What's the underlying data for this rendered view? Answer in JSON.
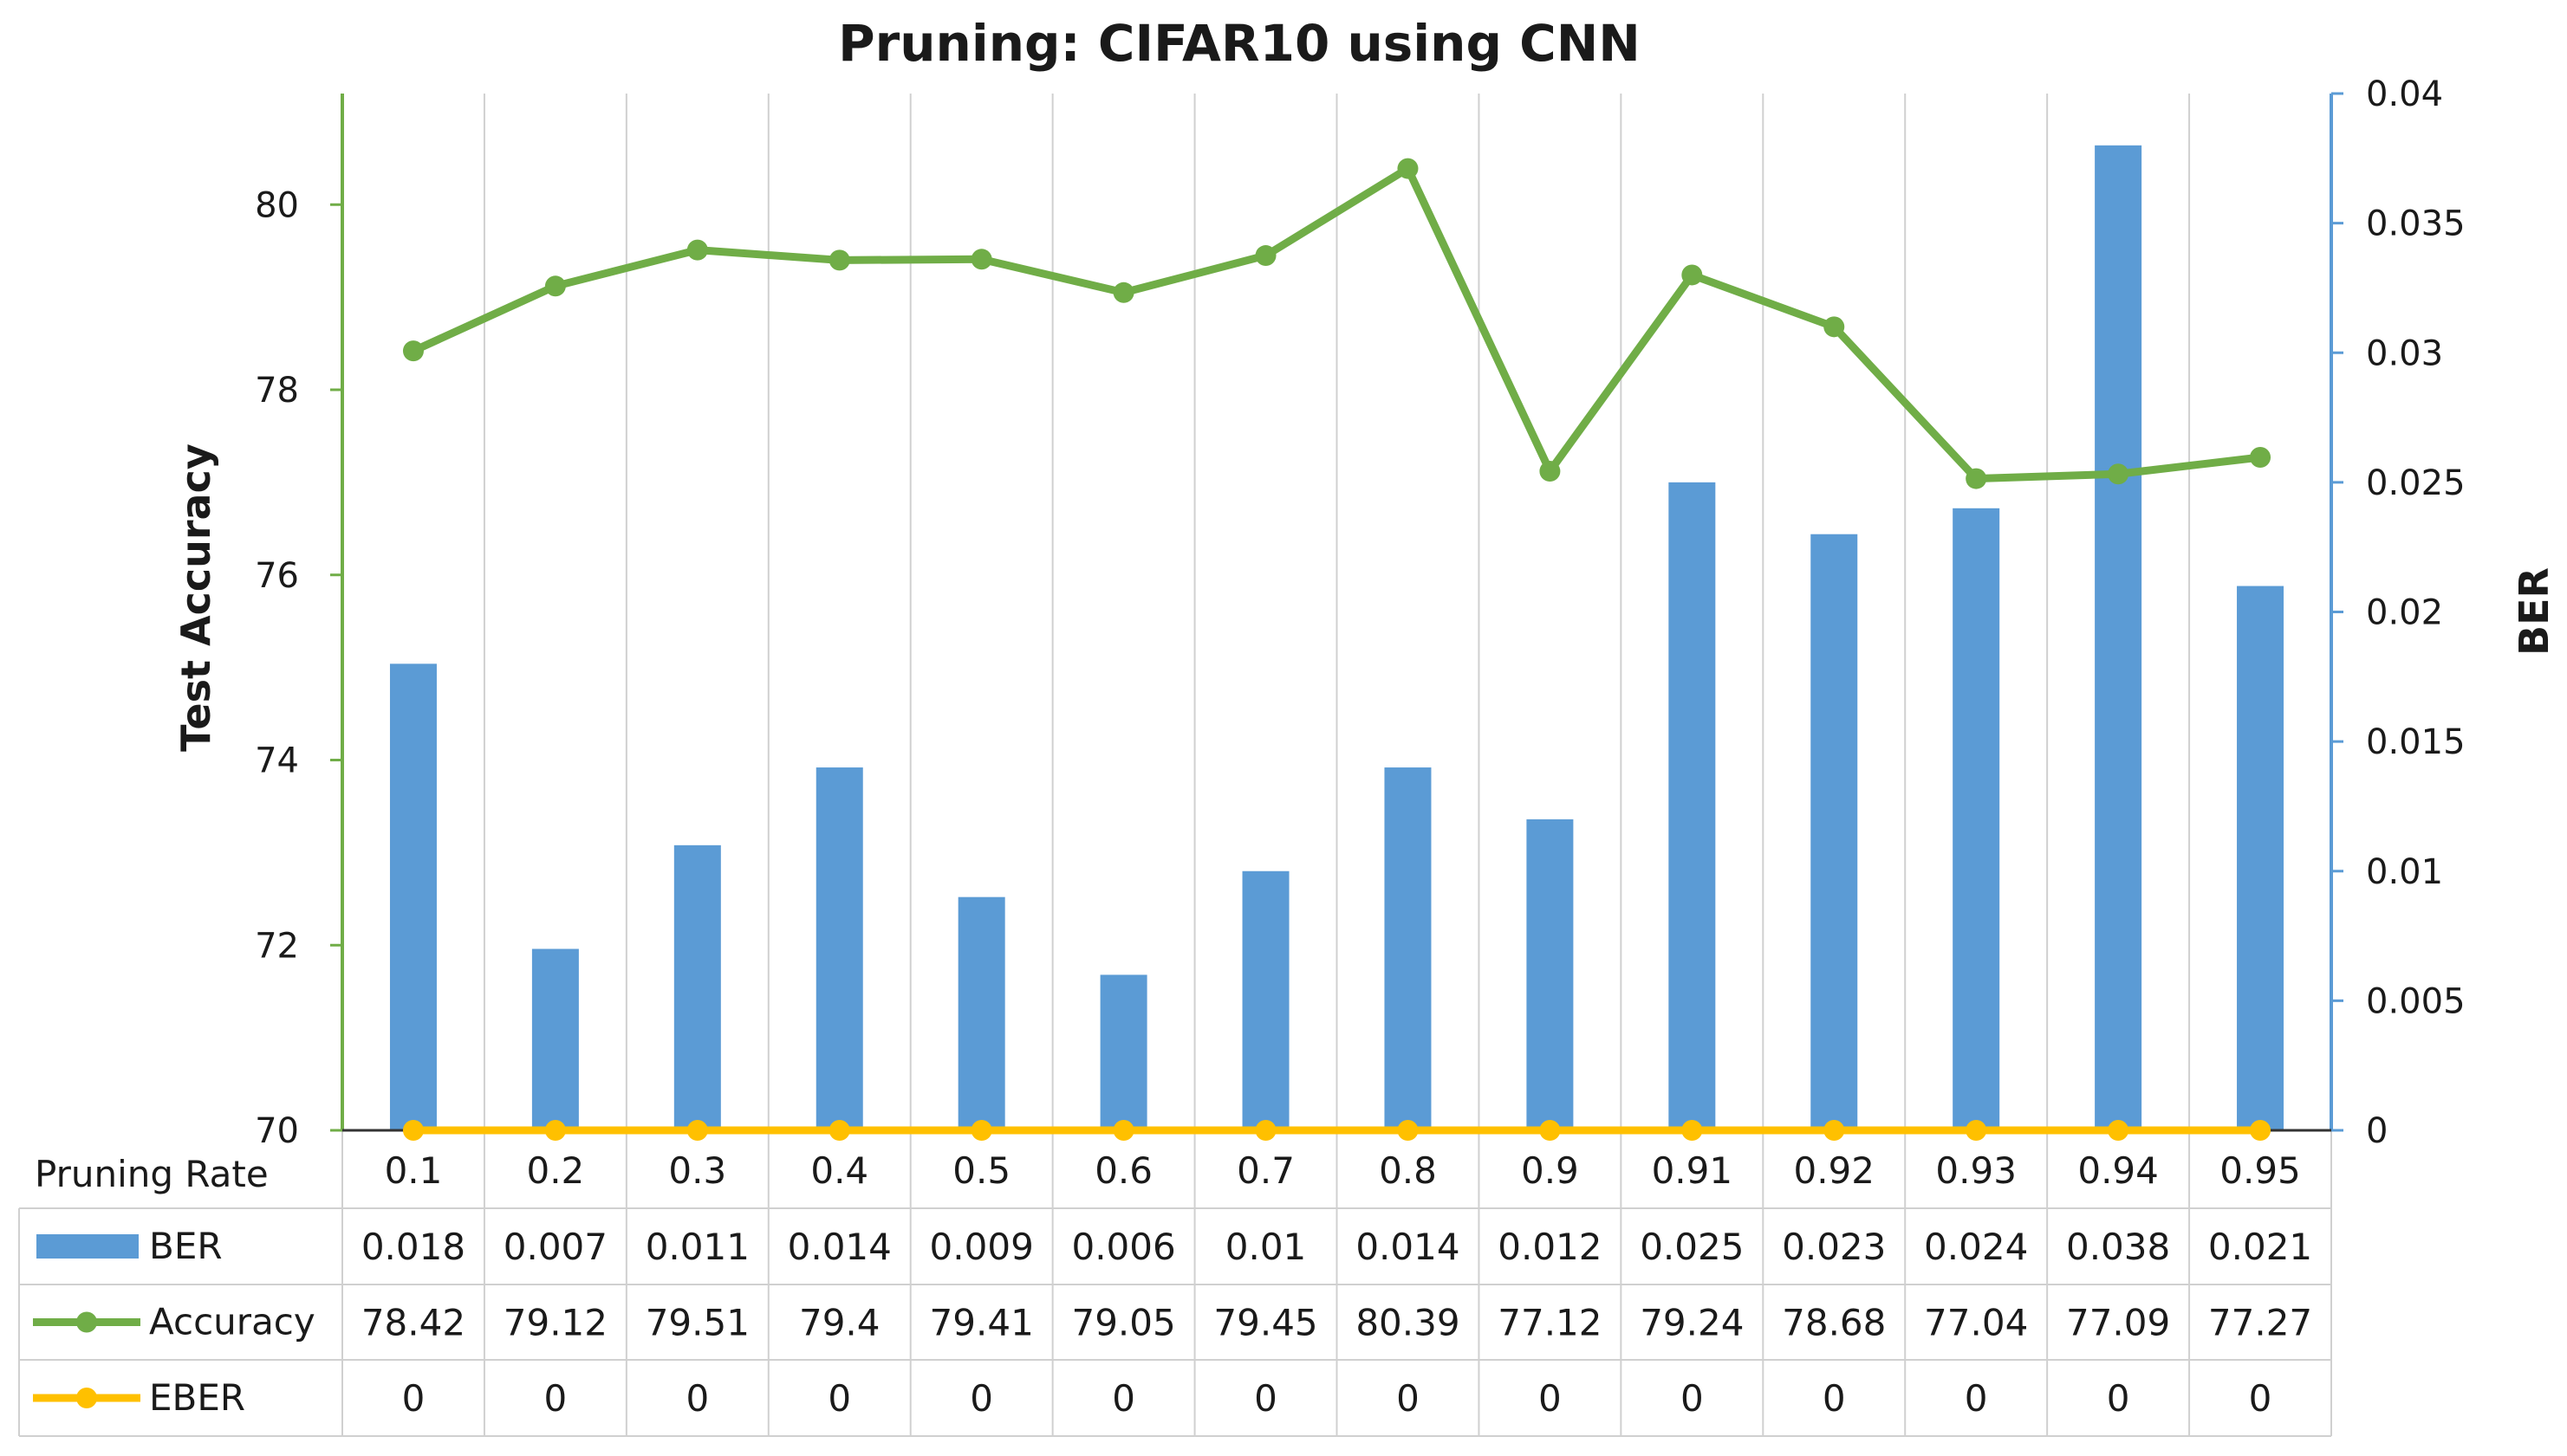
{
  "chart_data": {
    "type": "bar",
    "title": "Pruning: CIFAR10 using CNN",
    "category_axis_label": "Pruning Rate",
    "categories": [
      "0.1",
      "0.2",
      "0.3",
      "0.4",
      "0.5",
      "0.6",
      "0.7",
      "0.8",
      "0.9",
      "0.91",
      "0.92",
      "0.93",
      "0.94",
      "0.95"
    ],
    "left_axis": {
      "label": "Test Accuracy",
      "min": 70,
      "max": 81.2,
      "ticks": [
        "70",
        "72",
        "74",
        "76",
        "78",
        "80"
      ]
    },
    "right_axis": {
      "label": "BER",
      "min": 0,
      "max": 0.04,
      "ticks": [
        "0",
        "0.005",
        "0.01",
        "0.015",
        "0.02",
        "0.025",
        "0.03",
        "0.035",
        "0.04"
      ]
    },
    "grid": "vertical",
    "series": [
      {
        "name": "BER",
        "kind": "bar",
        "axis": "right",
        "color": "#5b9bd5",
        "values": [
          0.018,
          0.007,
          0.011,
          0.014,
          0.009,
          0.006,
          0.01,
          0.014,
          0.012,
          0.025,
          0.023,
          0.024,
          0.038,
          0.021
        ],
        "labels": [
          "0.018",
          "0.007",
          "0.011",
          "0.014",
          "0.009",
          "0.006",
          "0.01",
          "0.014",
          "0.012",
          "0.025",
          "0.023",
          "0.024",
          "0.038",
          "0.021"
        ]
      },
      {
        "name": "Accuracy",
        "kind": "line",
        "axis": "left",
        "color": "#70ad47",
        "values": [
          78.42,
          79.12,
          79.51,
          79.4,
          79.41,
          79.05,
          79.45,
          80.39,
          77.12,
          79.24,
          78.68,
          77.04,
          77.09,
          77.27
        ],
        "labels": [
          "78.42",
          "79.12",
          "79.51",
          "79.4",
          "79.41",
          "79.05",
          "79.45",
          "80.39",
          "77.12",
          "79.24",
          "78.68",
          "77.04",
          "77.09",
          "77.27"
        ]
      },
      {
        "name": "EBER",
        "kind": "line",
        "axis": "right",
        "color": "#ffc000",
        "values": [
          0,
          0,
          0,
          0,
          0,
          0,
          0,
          0,
          0,
          0,
          0,
          0,
          0,
          0
        ],
        "labels": [
          "0",
          "0",
          "0",
          "0",
          "0",
          "0",
          "0",
          "0",
          "0",
          "0",
          "0",
          "0",
          "0",
          "0"
        ]
      }
    ],
    "legend": "data-table-below"
  }
}
